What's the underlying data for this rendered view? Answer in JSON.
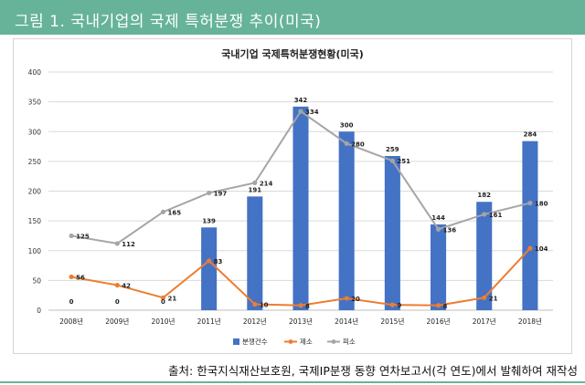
{
  "header": {
    "title": "그림 1. 국내기업의 국제 특허분쟁 추이(미국)"
  },
  "footer": {
    "source": "출처: 한국지식재산보호원, 국제IP분쟁 동향 연차보고서(각 연도)에서 발췌하여 재작성"
  },
  "colors": {
    "header_bg": "#66b39a",
    "bar": "#4472c4",
    "line_jaeso": "#ed7d31",
    "line_piso": "#a5a5a5"
  },
  "chart_data": {
    "type": "bar",
    "title": "국내기업 국제특허분쟁현황(미국)",
    "categories": [
      "2008년",
      "2009년",
      "2010년",
      "2011년",
      "2012년",
      "2013년",
      "2014년",
      "2015년",
      "2016년",
      "2017년",
      "2018년"
    ],
    "ylim": [
      0,
      400
    ],
    "yticks": [
      "0",
      "50",
      "100",
      "150",
      "200",
      "250",
      "300",
      "350",
      "400"
    ],
    "ytick_values": [
      0,
      50,
      100,
      150,
      200,
      250,
      300,
      350,
      400
    ],
    "series": [
      {
        "name": "분쟁건수",
        "kind": "bar",
        "values": [
          0,
          0,
          0,
          139,
          191,
          342,
          300,
          259,
          144,
          182,
          284
        ]
      },
      {
        "name": "제소",
        "kind": "line",
        "values": [
          56,
          42,
          21,
          83,
          10,
          8,
          20,
          9,
          8,
          21,
          104
        ]
      },
      {
        "name": "피소",
        "kind": "line",
        "values": [
          125,
          112,
          165,
          197,
          214,
          334,
          280,
          251,
          136,
          161,
          180
        ]
      }
    ],
    "legend": [
      "분쟁건수",
      "제소",
      "피소"
    ],
    "legend_position": "bottom",
    "grid": true
  }
}
